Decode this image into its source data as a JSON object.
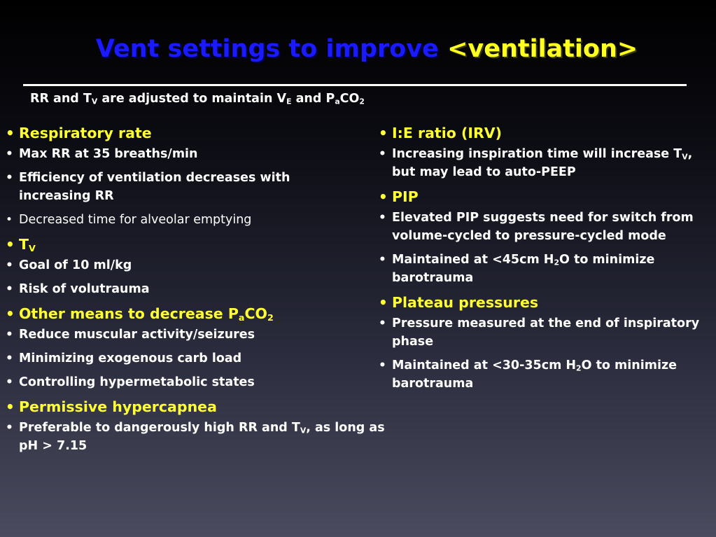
{
  "title": {
    "part1": "Vent settings to improve",
    "part2": "<ventilation>"
  },
  "colors": {
    "title_blue": "#1a1aff",
    "title_yellow": "#ffff22",
    "heading": "#ffff33",
    "text": "#ffffff"
  },
  "subtitle": {
    "t1": "RR and T",
    "s1": "V",
    "t2": " are adjusted to maintain V",
    "s2": "E",
    "t3": " and P",
    "s3": "a",
    "t4": "CO",
    "s4": "2"
  },
  "left": {
    "rr_head": "Respiratory rate",
    "rr_1": "Max RR at 35 breaths/min",
    "rr_2": "Efficiency of ventilation decreases with increasing RR",
    "rr_3": "Decreased time for alveolar emptying",
    "tv_head": "T",
    "tv_head_sub": "V",
    "tv_1": "Goal of 10 ml/kg",
    "tv_2": "Risk of volutrauma",
    "other_head_a": "Other means to decrease P",
    "other_head_s1": "a",
    "other_head_b": "CO",
    "other_head_s2": "2",
    "other_1": "Reduce muscular activity/seizures",
    "other_2": "Minimizing exogenous carb load",
    "other_3": "Controlling hypermetabolic states",
    "perm_head": "Permissive hypercapnea",
    "perm_1a": "Preferable to dangerously high RR and T",
    "perm_1s": "V",
    "perm_1b": ", as long as pH > 7.15"
  },
  "right": {
    "ie_head": "I:E ratio (IRV)",
    "ie_1a": "Increasing inspiration time will increase T",
    "ie_1s": "V",
    "ie_1b": ", but may lead to auto-PEEP",
    "pip_head": "PIP",
    "pip_1": "Elevated PIP suggests need for switch from volume-cycled to pressure-cycled mode",
    "pip_2a": "Maintained at <45cm H",
    "pip_2s": "2",
    "pip_2b": "O to minimize barotrauma",
    "plat_head": "Plateau pressures",
    "plat_1": "Pressure measured at the end of inspiratory phase",
    "plat_2a": "Maintained at <30-35cm H",
    "plat_2s": "2",
    "plat_2b": "O to minimize barotrauma"
  }
}
